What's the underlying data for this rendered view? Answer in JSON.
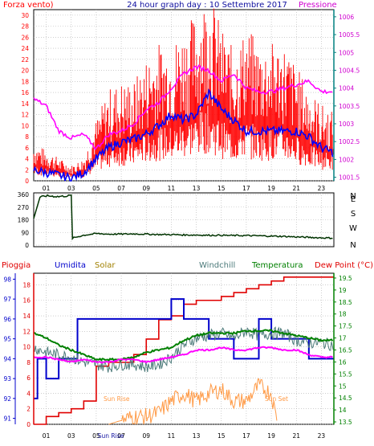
{
  "header": {
    "title": "24 hour graph day : 10 Settembre 2017",
    "left_label": "Forza vento)",
    "right_label": "Pressione"
  },
  "colors": {
    "wind": "#ff0000",
    "gust_line": "#0000ff",
    "pressure": "#ff00ff",
    "direction": "#003300",
    "rain": "#e00000",
    "humidity": "#0000cc",
    "solar": "#ff9944",
    "windchill": "#4c7a7a",
    "temperature": "#008000",
    "dewpoint": "#ff00ff",
    "axis_teal": "#008080",
    "green_axis": "#008000",
    "legend_solar": "#a08000"
  },
  "chart_data": [
    {
      "type": "line",
      "title": "24 hour graph day : 10 Settembre 2017",
      "ylabel": "Forza vento)",
      "y2label": "Pressione",
      "xlim": [
        0,
        24
      ],
      "ylim": [
        0,
        31
      ],
      "y2lim": [
        1001.4,
        1006.2
      ],
      "x_ticks": [
        "01",
        "03",
        "05",
        "07",
        "09",
        "11",
        "13",
        "15",
        "17",
        "19",
        "21",
        "23"
      ],
      "y_ticks": [
        0,
        2,
        4,
        6,
        8,
        10,
        12,
        14,
        16,
        18,
        20,
        22,
        24,
        26,
        28,
        30
      ],
      "y2_ticks": [
        1001.5,
        1002,
        1002.5,
        1003,
        1003.5,
        1004,
        1004.5,
        1005,
        1005.5,
        1006
      ],
      "grid": true,
      "series": [
        {
          "name": "wind",
          "color": "wind",
          "axis": "left",
          "style": "bars",
          "x": [
            0,
            1,
            2,
            3,
            4,
            5,
            6,
            7,
            8,
            9,
            10,
            11,
            12,
            13,
            14,
            15,
            16,
            17,
            18,
            19,
            20,
            21,
            22,
            23,
            24
          ],
          "values": [
            5,
            4,
            3,
            2,
            3,
            8,
            12,
            13,
            13,
            16,
            18,
            18,
            20,
            22,
            25,
            20,
            17,
            20,
            18,
            18,
            18,
            15,
            12,
            10,
            9
          ]
        },
        {
          "name": "gust",
          "color": "gust_line",
          "axis": "left",
          "x": [
            0,
            1,
            2,
            3,
            4,
            5,
            6,
            7,
            8,
            9,
            10,
            11,
            12,
            13,
            14,
            15,
            16,
            17,
            18,
            19,
            20,
            21,
            22,
            23,
            24
          ],
          "values": [
            2,
            1.5,
            1,
            0.5,
            1.5,
            4,
            6,
            7,
            7.5,
            8.5,
            10,
            12,
            11,
            12,
            16,
            13,
            11,
            9,
            9,
            9,
            9,
            9,
            8,
            6,
            5
          ]
        },
        {
          "name": "pressure",
          "color": "pressure",
          "axis": "right",
          "x": [
            0,
            1,
            2,
            3,
            4,
            5,
            6,
            7,
            8,
            9,
            10,
            11,
            12,
            13,
            14,
            15,
            16,
            17,
            18,
            19,
            20,
            21,
            22,
            23,
            24
          ],
          "values": [
            1003.7,
            1003.5,
            1002.8,
            1002.6,
            1002.7,
            1002.3,
            1002.7,
            1002.8,
            1003.0,
            1003.4,
            1003.6,
            1004.0,
            1004.4,
            1004.6,
            1004.5,
            1004.2,
            1004.4,
            1004.0,
            1003.9,
            1003.9,
            1004.0,
            1004.1,
            1004.2,
            1003.9,
            1003.9
          ]
        }
      ]
    },
    {
      "type": "line",
      "ylim": [
        0,
        360
      ],
      "y_ticks": [
        0,
        90,
        180,
        270,
        360
      ],
      "y2_ticks": [
        "N",
        "W",
        "S",
        "E",
        "N"
      ],
      "series": [
        {
          "name": "direction",
          "color": "direction",
          "x": [
            0,
            0.5,
            1,
            2,
            3,
            3.1,
            4,
            5,
            6,
            7,
            8,
            9,
            10,
            11,
            12,
            13,
            14,
            15,
            16,
            17,
            18,
            19,
            20,
            21,
            22,
            23,
            24
          ],
          "values": [
            190,
            340,
            350,
            345,
            352,
            50,
            70,
            82,
            78,
            78,
            80,
            78,
            75,
            75,
            72,
            72,
            70,
            70,
            68,
            68,
            66,
            64,
            62,
            58,
            55,
            52,
            50
          ]
        }
      ]
    },
    {
      "type": "line",
      "legend": [
        "Pioggia",
        "Umidita",
        "Solar",
        "Windchill",
        "Temperatura",
        "Dew Point (°C)"
      ],
      "y_ticks": [
        91,
        92,
        93,
        94,
        95,
        96,
        97,
        98
      ],
      "y_range": [
        90.7,
        98.3
      ],
      "y_inner_ticks": [
        0,
        2,
        4,
        6,
        8,
        10,
        12,
        14,
        16,
        18
      ],
      "y_inner_range": [
        0,
        19.5
      ],
      "y2_ticks": [
        13.5,
        14,
        14.5,
        15,
        15.5,
        16,
        16.5,
        17,
        17.5,
        18,
        18.5,
        19,
        19.5
      ],
      "y2_range": [
        13.4,
        19.7
      ],
      "x_ticks": [
        "01",
        "03",
        "05",
        "07",
        "09",
        "11",
        "13",
        "15",
        "17",
        "19",
        "21",
        "23"
      ],
      "annotations": [
        "Sun Rise",
        "Sun Set"
      ],
      "x_bottom_label": "Sun Rise",
      "series": [
        {
          "name": "Pioggia",
          "color": "rain",
          "axis": "inner",
          "x": [
            0,
            1,
            2,
            3,
            4,
            5,
            6,
            7,
            8,
            9,
            10,
            11,
            12,
            13,
            14,
            15,
            16,
            17,
            18,
            19,
            20,
            21,
            22,
            23,
            24
          ],
          "values": [
            0,
            1,
            1.5,
            2,
            3,
            7.5,
            8,
            8,
            9,
            11,
            13.5,
            14,
            15.5,
            16,
            16,
            16.5,
            17,
            17.5,
            18,
            18.5,
            19,
            19,
            19,
            19,
            19
          ]
        },
        {
          "name": "Umidita",
          "color": "humidity",
          "axis": "left",
          "x": [
            0,
            0.3,
            1,
            2,
            3,
            3.5,
            4,
            5,
            6,
            7,
            8,
            9,
            10,
            11,
            12,
            13,
            14,
            15,
            16,
            17,
            18,
            19,
            20,
            21,
            22,
            23,
            24
          ],
          "values": [
            92,
            94,
            93,
            94,
            94,
            96,
            96,
            96,
            96,
            96,
            96,
            96,
            96,
            97,
            96,
            96,
            95,
            95,
            94,
            94,
            96,
            95,
            95,
            95,
            94,
            94,
            94
          ]
        },
        {
          "name": "Temperatura",
          "color": "temperature",
          "axis": "right",
          "x": [
            0,
            1,
            2,
            3,
            4,
            5,
            6,
            7,
            8,
            9,
            10,
            11,
            12,
            13,
            14,
            15,
            16,
            17,
            18,
            19,
            20,
            21,
            22,
            23,
            24
          ],
          "values": [
            17.2,
            17.0,
            16.7,
            16.5,
            16.3,
            16.1,
            16.1,
            16.1,
            16.2,
            16.4,
            16.5,
            16.6,
            16.9,
            17.1,
            17.2,
            17.2,
            17.2,
            17.3,
            17.3,
            17.3,
            17.2,
            17.1,
            17.0,
            16.9,
            16.9
          ]
        },
        {
          "name": "Windchill",
          "color": "windchill",
          "axis": "right",
          "x": [
            0,
            1,
            2,
            3,
            4,
            5,
            6,
            7,
            8,
            9,
            10,
            11,
            12,
            13,
            14,
            15,
            16,
            17,
            18,
            19,
            20,
            21,
            22,
            23,
            24
          ],
          "values": [
            16.6,
            16.4,
            16.3,
            16.2,
            16.0,
            15.9,
            15.8,
            15.9,
            15.9,
            15.8,
            15.9,
            16.2,
            16.7,
            17.0,
            17.1,
            17.2,
            17.0,
            17.3,
            17.1,
            17.2,
            17.2,
            16.9,
            16.8,
            16.8,
            16.7
          ]
        },
        {
          "name": "Dew Point (°C)",
          "color": "dewpoint",
          "axis": "right",
          "x": [
            0,
            1,
            2,
            3,
            4,
            5,
            6,
            7,
            8,
            9,
            10,
            11,
            12,
            13,
            14,
            15,
            16,
            17,
            18,
            19,
            20,
            21,
            22,
            23,
            24
          ],
          "values": [
            16.2,
            16.2,
            16.1,
            16.0,
            16.1,
            16.0,
            16.0,
            16.1,
            16.1,
            16.0,
            16.1,
            16.2,
            16.3,
            16.5,
            16.5,
            16.6,
            16.5,
            16.5,
            16.6,
            16.6,
            16.5,
            16.5,
            16.3,
            16.2,
            16.2
          ]
        },
        {
          "name": "Solar",
          "color": "solar",
          "axis": "inner",
          "x": [
            6,
            7,
            8,
            9,
            10,
            11,
            12,
            13,
            14,
            15,
            16,
            17,
            18,
            19,
            19.5
          ],
          "values": [
            0,
            0.5,
            1,
            1,
            1.5,
            3,
            4,
            3,
            4,
            4.5,
            3,
            3,
            5,
            4,
            0
          ]
        }
      ]
    }
  ]
}
